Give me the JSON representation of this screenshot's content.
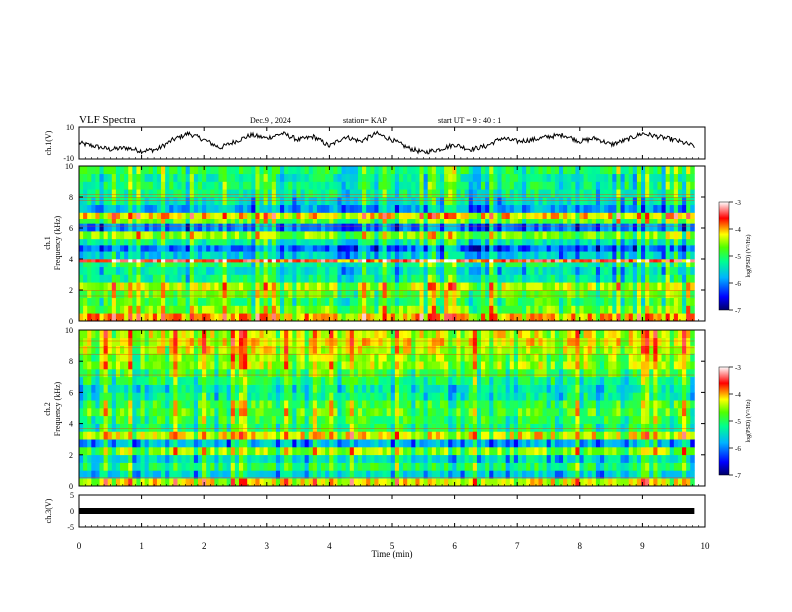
{
  "header": {
    "title": "VLF Spectra",
    "date": "Dec.9 , 2024",
    "station": "station= KAP",
    "start": "start UT = 9 : 40 : 1"
  },
  "chart_data": [
    {
      "id": "ch1_waveform",
      "type": "line",
      "ylabel": "ch.1(V)",
      "ylim": [
        -10,
        10
      ],
      "ytick_labels": [
        "10",
        "-10"
      ],
      "xlim": [
        0,
        10
      ],
      "x": [
        0,
        0.25,
        0.5,
        0.75,
        1,
        1.25,
        1.5,
        1.75,
        2,
        2.25,
        2.5,
        2.75,
        3,
        3.25,
        3.5,
        3.75,
        4,
        4.25,
        4.5,
        4.75,
        5,
        5.25,
        5.5,
        5.75,
        6,
        6.25,
        6.5,
        6.75,
        7,
        7.25,
        7.5,
        7.75,
        8,
        8.25,
        8.5,
        8.75,
        9,
        9.25,
        9.5,
        9.75,
        9.83
      ],
      "y": [
        0,
        -2,
        -4,
        -3,
        -5,
        -4,
        2,
        6,
        2,
        -3,
        1,
        5,
        3,
        6,
        2,
        4,
        -2,
        4,
        1,
        6,
        2,
        -3,
        -6,
        -4,
        -1,
        -4,
        -2,
        3,
        1,
        2,
        4,
        5,
        1,
        3,
        -1,
        2,
        6,
        4,
        2,
        -1,
        -2
      ]
    },
    {
      "id": "ch1_spectrogram",
      "type": "heatmap",
      "ylabel": "ch.1 Frequency (kHz)",
      "ylim": [
        0,
        10
      ],
      "ytick_labels": [
        "0",
        "2",
        "4",
        "6",
        "8",
        "10"
      ],
      "xlim": [
        0,
        10
      ],
      "data_end_min": 9.83,
      "colorbar": {
        "label": "log(PSD) (V²/Hz)",
        "range": [
          -7,
          -3
        ],
        "tick_labels": [
          "-3",
          "-4",
          "-5",
          "-6",
          "-7"
        ]
      },
      "freq_bands_khz": [
        0,
        0.5,
        1,
        1.5,
        2,
        2.5,
        3,
        3.5,
        3.8,
        4,
        4.5,
        4.9,
        5.3,
        5.8,
        6.3,
        6.6,
        7,
        7.5,
        8,
        8.5,
        9,
        9.5,
        10
      ],
      "band_level_log_psd": [
        -4,
        -4.6,
        -4.9,
        -4.7,
        -4.4,
        -5.2,
        -5.4,
        -5.1,
        -3.5,
        -5.6,
        -6.1,
        -5.3,
        -4.6,
        -6,
        -4.7,
        -4.1,
        -5.8,
        -5.4,
        -5.2,
        -5.1,
        -5.2,
        -5.0
      ]
    },
    {
      "id": "ch2_spectrogram",
      "type": "heatmap",
      "ylabel": "ch.2 Frequency (kHz)",
      "ylim": [
        0,
        10
      ],
      "ytick_labels": [
        "0",
        "2",
        "4",
        "6",
        "8",
        "10"
      ],
      "xlim": [
        0,
        10
      ],
      "data_end_min": 9.83,
      "colorbar": {
        "label": "log(PSD) (V²/Hz)",
        "range": [
          -7,
          -3
        ],
        "tick_labels": [
          "-3",
          "-4",
          "-5",
          "-6",
          "-7"
        ]
      },
      "freq_bands_khz": [
        0,
        0.5,
        1,
        1.5,
        2,
        2.5,
        3,
        3.5,
        4,
        4.5,
        5,
        5.5,
        6,
        6.5,
        7,
        7.5,
        8,
        8.5,
        9,
        9.5,
        10
      ],
      "band_level_log_psd": [
        -4.2,
        -5.5,
        -5.0,
        -5.4,
        -4.5,
        -5.7,
        -4.2,
        -5.0,
        -4.9,
        -4.7,
        -4.8,
        -5.2,
        -5.3,
        -5.0,
        -4.8,
        -4.4,
        -4.5,
        -4.3,
        -4.2,
        -4.3
      ]
    },
    {
      "id": "ch3_waveform",
      "type": "line",
      "ylabel": "ch.3(V)",
      "ylim": [
        -5,
        5
      ],
      "ytick_labels": [
        "5",
        "0",
        "-5"
      ],
      "xlim": [
        0,
        10
      ],
      "x": [
        0,
        9.83
      ],
      "y": [
        0,
        0
      ]
    }
  ],
  "x_axis": {
    "label": "Time (min)",
    "tick_labels": [
      "0",
      "1",
      "2",
      "3",
      "4",
      "5",
      "6",
      "7",
      "8",
      "9",
      "10"
    ]
  }
}
